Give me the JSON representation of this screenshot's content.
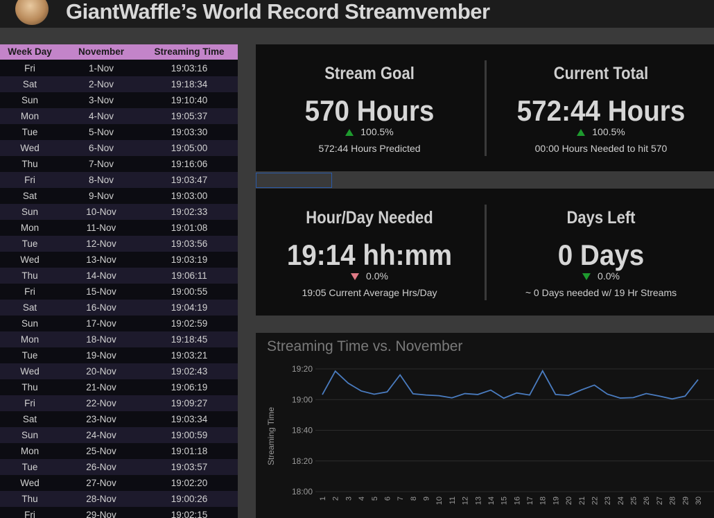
{
  "header": {
    "title": "GiantWaffle’s World Record Streamvember"
  },
  "table": {
    "columns": [
      "Week Day",
      "November",
      "Streaming Time"
    ],
    "rows": [
      [
        "Fri",
        "1-Nov",
        "19:03:16"
      ],
      [
        "Sat",
        "2-Nov",
        "19:18:34"
      ],
      [
        "Sun",
        "3-Nov",
        "19:10:40"
      ],
      [
        "Mon",
        "4-Nov",
        "19:05:37"
      ],
      [
        "Tue",
        "5-Nov",
        "19:03:30"
      ],
      [
        "Wed",
        "6-Nov",
        "19:05:00"
      ],
      [
        "Thu",
        "7-Nov",
        "19:16:06"
      ],
      [
        "Fri",
        "8-Nov",
        "19:03:47"
      ],
      [
        "Sat",
        "9-Nov",
        "19:03:00"
      ],
      [
        "Sun",
        "10-Nov",
        "19:02:33"
      ],
      [
        "Mon",
        "11-Nov",
        "19:01:08"
      ],
      [
        "Tue",
        "12-Nov",
        "19:03:56"
      ],
      [
        "Wed",
        "13-Nov",
        "19:03:19"
      ],
      [
        "Thu",
        "14-Nov",
        "19:06:11"
      ],
      [
        "Fri",
        "15-Nov",
        "19:00:55"
      ],
      [
        "Sat",
        "16-Nov",
        "19:04:19"
      ],
      [
        "Sun",
        "17-Nov",
        "19:02:59"
      ],
      [
        "Mon",
        "18-Nov",
        "19:18:45"
      ],
      [
        "Tue",
        "19-Nov",
        "19:03:21"
      ],
      [
        "Wed",
        "20-Nov",
        "19:02:43"
      ],
      [
        "Thu",
        "21-Nov",
        "19:06:19"
      ],
      [
        "Fri",
        "22-Nov",
        "19:09:27"
      ],
      [
        "Sat",
        "23-Nov",
        "19:03:34"
      ],
      [
        "Sun",
        "24-Nov",
        "19:00:59"
      ],
      [
        "Mon",
        "25-Nov",
        "19:01:18"
      ],
      [
        "Tue",
        "26-Nov",
        "19:03:57"
      ],
      [
        "Wed",
        "27-Nov",
        "19:02:20"
      ],
      [
        "Thu",
        "28-Nov",
        "19:00:26"
      ],
      [
        "Fri",
        "29-Nov",
        "19:02:15"
      ]
    ]
  },
  "cards": [
    {
      "title": "Stream Goal",
      "value": "570 Hours",
      "change": "100.5%",
      "note": "572:44 Hours Predicted"
    },
    {
      "title": "Current Total",
      "value": "572:44 Hours",
      "change": "100.5%",
      "note": "00:00 Hours Needed to hit 570"
    },
    {
      "title": "Hour/Day Needed",
      "value": "19:14 hh:mm",
      "change": "0.0%",
      "note": "19:05 Current Average Hrs/Day"
    },
    {
      "title": "Days Left",
      "value": "0 Days",
      "change": "0.0%",
      "note": "~ 0 Days needed w/ 19 Hr Streams"
    }
  ],
  "chart_data": {
    "type": "line",
    "title": "Streaming Time vs. November",
    "y_label": "Streaming Time",
    "categories": [
      "1",
      "2",
      "3",
      "4",
      "5",
      "6",
      "7",
      "8",
      "9",
      "10",
      "11",
      "12",
      "13",
      "14",
      "15",
      "16",
      "17",
      "18",
      "19",
      "20",
      "21",
      "22",
      "23",
      "24",
      "25",
      "26",
      "27",
      "28",
      "29",
      "30"
    ],
    "series": [
      {
        "name": "Streaming Time",
        "color": "#4a7cc0",
        "values": [
          1143.27,
          1158.57,
          1150.67,
          1145.62,
          1143.5,
          1145,
          1156.1,
          1143.78,
          1143,
          1142.55,
          1141.13,
          1143.93,
          1143.32,
          1146.18,
          1140.92,
          1144.32,
          1142.98,
          1158.75,
          1143.35,
          1142.72,
          1146.32,
          1149.45,
          1143.57,
          1140.98,
          1141.3,
          1143.95,
          1142.33,
          1140.43,
          1142.25,
          1153
        ]
      }
    ],
    "ylim": [
      1080,
      1160
    ],
    "yticks": [
      {
        "value": 1080,
        "label": "18:00"
      },
      {
        "value": 1100,
        "label": "18:20"
      },
      {
        "value": 1120,
        "label": "18:40"
      },
      {
        "value": 1140,
        "label": "19:00"
      },
      {
        "value": 1160,
        "label": "19:20"
      }
    ],
    "grid": true
  }
}
